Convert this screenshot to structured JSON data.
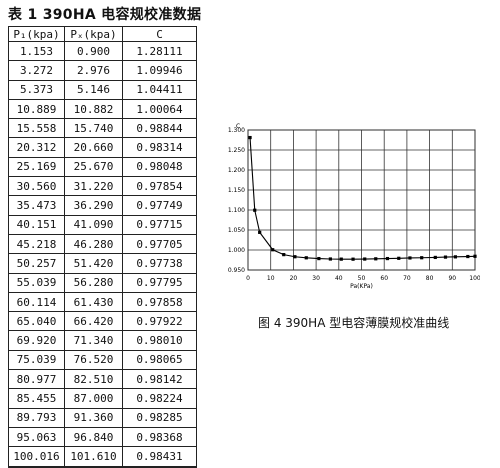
{
  "table": {
    "title": "表 1  390HA 电容规校准数据",
    "headers": [
      "P₁(kpa)",
      "Pₓ(kpa)",
      "C"
    ],
    "rows": [
      [
        "1.153",
        "0.900",
        "1.28111"
      ],
      [
        "3.272",
        "2.976",
        "1.09946"
      ],
      [
        "5.373",
        "5.146",
        "1.04411"
      ],
      [
        "10.889",
        "10.882",
        "1.00064"
      ],
      [
        "15.558",
        "15.740",
        "0.98844"
      ],
      [
        "20.312",
        "20.660",
        "0.98314"
      ],
      [
        "25.169",
        "25.670",
        "0.98048"
      ],
      [
        "30.560",
        "31.220",
        "0.97854"
      ],
      [
        "35.473",
        "36.290",
        "0.97749"
      ],
      [
        "40.151",
        "41.090",
        "0.97715"
      ],
      [
        "45.218",
        "46.280",
        "0.97705"
      ],
      [
        "50.257",
        "51.420",
        "0.97738"
      ],
      [
        "55.039",
        "56.280",
        "0.97795"
      ],
      [
        "60.114",
        "61.430",
        "0.97858"
      ],
      [
        "65.040",
        "66.420",
        "0.97922"
      ],
      [
        "69.920",
        "71.340",
        "0.98010"
      ],
      [
        "75.039",
        "76.520",
        "0.98065"
      ],
      [
        "80.977",
        "82.510",
        "0.98142"
      ],
      [
        "85.455",
        "87.000",
        "0.98224"
      ],
      [
        "89.793",
        "91.360",
        "0.98285"
      ],
      [
        "95.063",
        "96.840",
        "0.98368"
      ],
      [
        "100.016",
        "101.610",
        "0.98431"
      ]
    ]
  },
  "figure_caption": "图 4 390HA 型电容薄膜规校准曲线",
  "chart_data": {
    "type": "line",
    "title": "",
    "xlabel": "Pa(KPa)",
    "ylabel": "C",
    "xlim": [
      0,
      100
    ],
    "ylim": [
      0.95,
      1.3
    ],
    "xticks": [
      0,
      10,
      20,
      30,
      40,
      50,
      60,
      70,
      80,
      90,
      100
    ],
    "yticks": [
      "0.950",
      "1.000",
      "1.050",
      "1.100",
      "1.150",
      "1.200",
      "1.250",
      "1.300"
    ],
    "grid": true,
    "series": [
      {
        "x": [
          0.9,
          2.976,
          5.146,
          10.882,
          15.74,
          20.66,
          25.67,
          31.22,
          36.29,
          41.09,
          46.28,
          51.42,
          56.28,
          61.43,
          66.42,
          71.34,
          76.52,
          82.51,
          87.0,
          91.36,
          96.84,
          101.61
        ],
        "y": [
          1.28111,
          1.09946,
          1.04411,
          1.00064,
          0.98844,
          0.98314,
          0.98048,
          0.97854,
          0.97749,
          0.97715,
          0.97705,
          0.97738,
          0.97795,
          0.97858,
          0.97922,
          0.9801,
          0.98065,
          0.98142,
          0.98224,
          0.98285,
          0.98368,
          0.98431
        ]
      }
    ]
  }
}
